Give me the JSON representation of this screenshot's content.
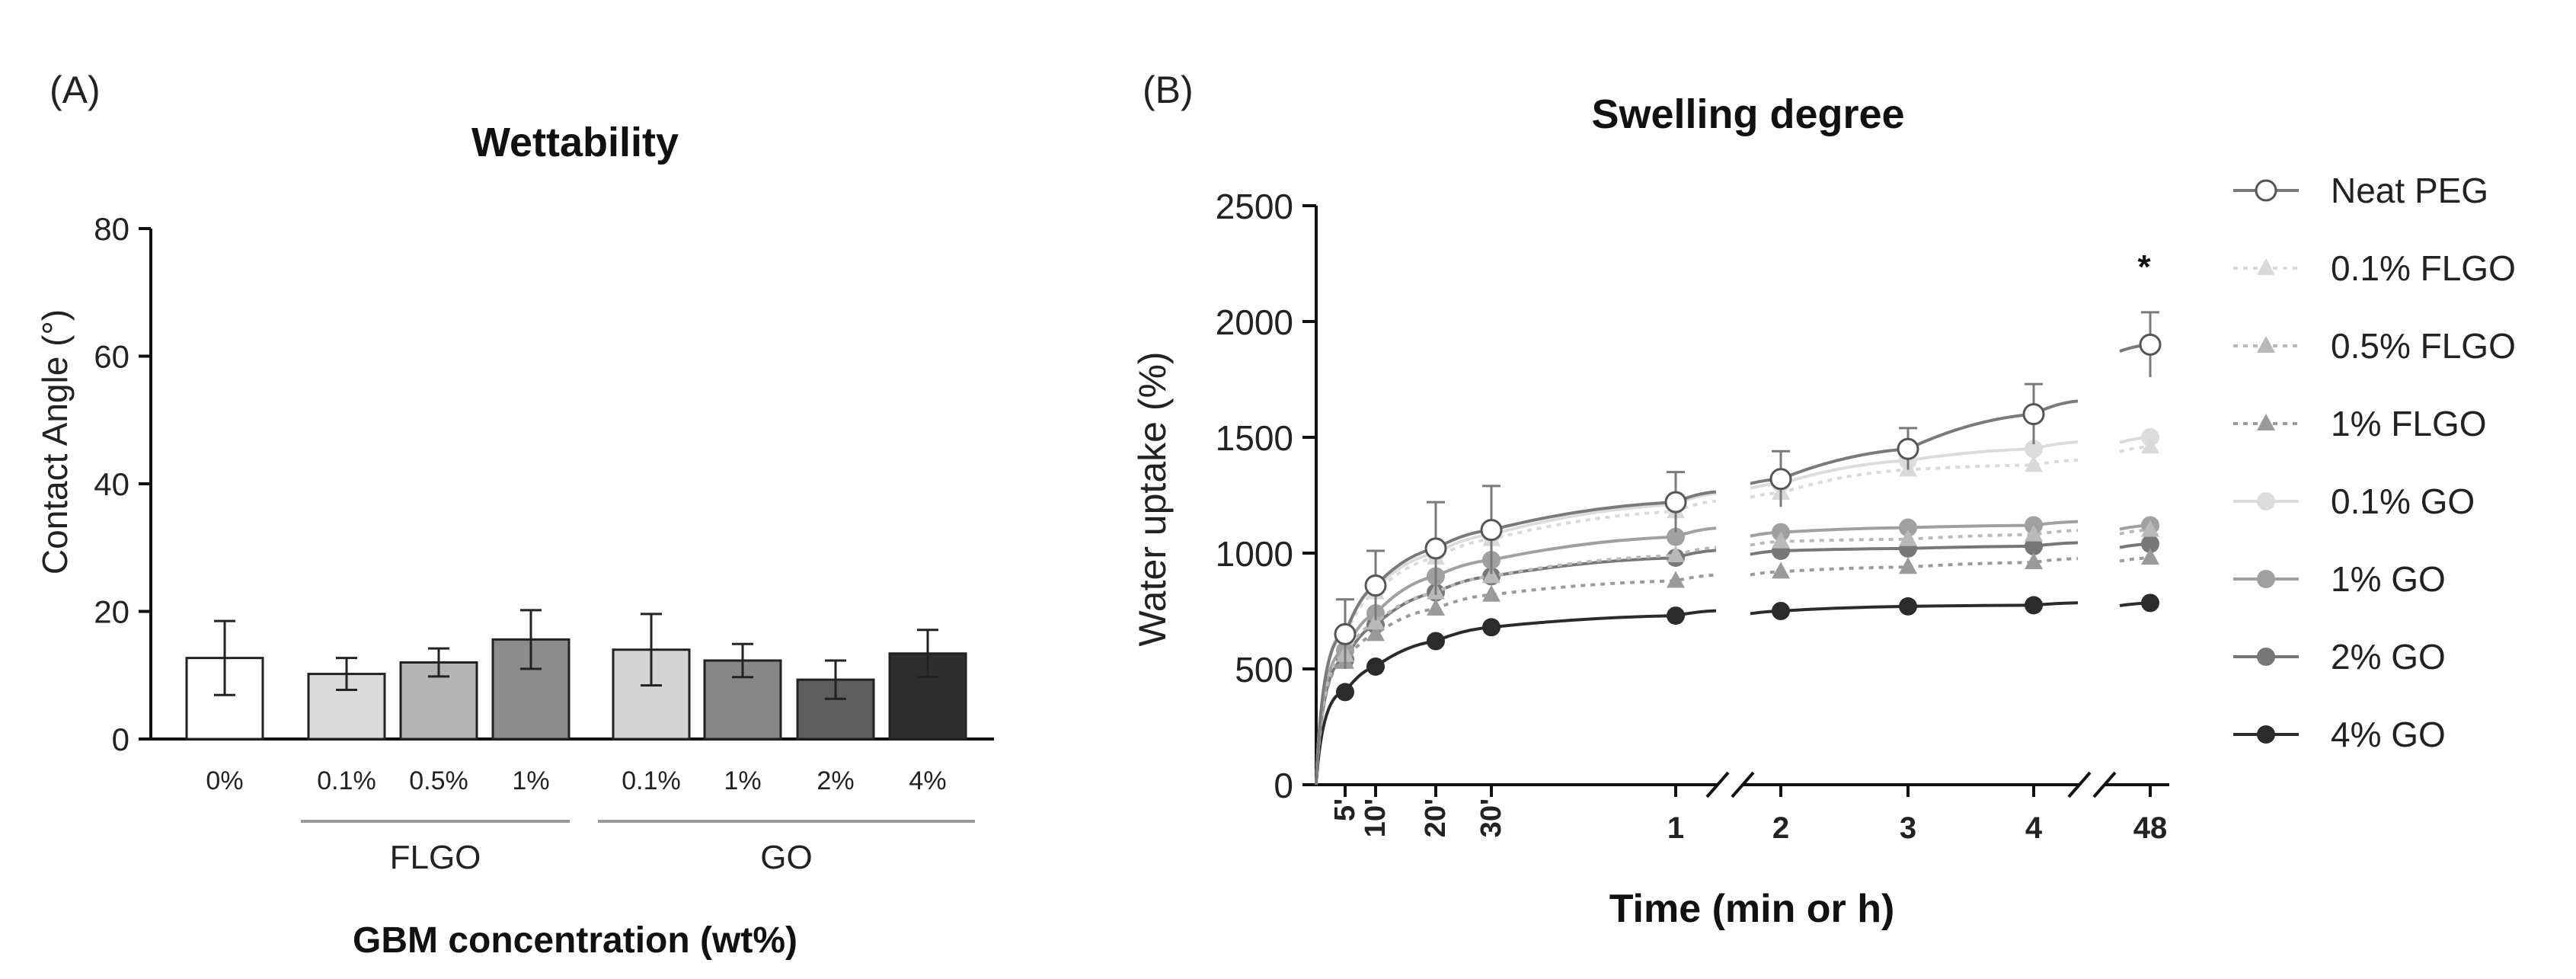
{
  "chart_data": [
    {
      "panel_label": "(A)",
      "type": "bar",
      "title": "Wettability",
      "ylabel": "Contact Angle (°)",
      "xlabel": "GBM concentration (wt%)",
      "ylim": [
        0,
        80
      ],
      "yticks": [
        0,
        20,
        40,
        60,
        80
      ],
      "categories": [
        "0%",
        "0.1%",
        "0.5%",
        "1%",
        "0.1%",
        "1%",
        "2%",
        "4%"
      ],
      "groups": [
        {
          "label": "FLGO",
          "members": [
            1,
            2,
            3
          ]
        },
        {
          "label": "GO",
          "members": [
            4,
            5,
            6,
            7
          ]
        }
      ],
      "values": [
        12.7,
        10.2,
        12.0,
        15.6,
        14.0,
        12.3,
        9.3,
        13.4
      ],
      "errors": [
        5.8,
        2.5,
        2.2,
        4.6,
        5.6,
        2.6,
        3.0,
        3.7
      ],
      "colors": [
        "#ffffff",
        "#dadada",
        "#b4b4b4",
        "#8c8c8c",
        "#d4d4d4",
        "#878787",
        "#5e5e5e",
        "#2e2e2e"
      ]
    },
    {
      "panel_label": "(B)",
      "type": "line",
      "title": "Swelling degree",
      "ylabel": "Water uptake (%)",
      "xlabel": "Time (min or h)",
      "ylim": [
        0,
        2500
      ],
      "yticks": [
        0,
        500,
        1000,
        1500,
        2000,
        2500
      ],
      "xticks": [
        "5'",
        "10'",
        "20'",
        "30'",
        "1",
        "2",
        "3",
        "4",
        "48"
      ],
      "annotation": "*",
      "series": [
        {
          "name": "Neat PEG",
          "marker": "circle-open",
          "dash": "solid",
          "color": "#7a7a7a",
          "values": [
            650,
            860,
            1020,
            1100,
            1220,
            1320,
            1450,
            1600,
            1900
          ],
          "errors": [
            150,
            150,
            200,
            190,
            130,
            120,
            90,
            130,
            140
          ]
        },
        {
          "name": "0.1% FLGO",
          "marker": "triangle",
          "dash": "dotted",
          "color": "#d9d9d9",
          "values": [
            640,
            830,
            980,
            1060,
            1180,
            1260,
            1360,
            1380,
            1460
          ],
          "errors": [
            0,
            0,
            0,
            0,
            0,
            0,
            0,
            0,
            0
          ]
        },
        {
          "name": "0.5% FLGO",
          "marker": "triangle",
          "dash": "dotted",
          "color": "#b9b9b9",
          "values": [
            560,
            700,
            830,
            900,
            990,
            1050,
            1060,
            1080,
            1100
          ],
          "errors": [
            0,
            0,
            0,
            0,
            0,
            0,
            0,
            0,
            0
          ]
        },
        {
          "name": "1% FLGO",
          "marker": "triangle",
          "dash": "dotted",
          "color": "#9a9a9a",
          "values": [
            530,
            650,
            760,
            820,
            880,
            920,
            940,
            960,
            980
          ],
          "errors": [
            0,
            0,
            0,
            0,
            0,
            0,
            0,
            0,
            0
          ]
        },
        {
          "name": "0.1% GO",
          "marker": "circle",
          "dash": "solid",
          "color": "#dcdcdc",
          "values": [
            660,
            850,
            1000,
            1080,
            1210,
            1300,
            1400,
            1450,
            1500
          ],
          "errors": [
            0,
            0,
            0,
            0,
            0,
            0,
            0,
            0,
            0
          ]
        },
        {
          "name": "1% GO",
          "marker": "circle",
          "dash": "solid",
          "color": "#a0a0a0",
          "values": [
            580,
            740,
            900,
            970,
            1070,
            1090,
            1110,
            1120,
            1120
          ],
          "errors": [
            0,
            0,
            0,
            0,
            0,
            0,
            0,
            0,
            0
          ]
        },
        {
          "name": "2% GO",
          "marker": "circle",
          "dash": "solid",
          "color": "#777777",
          "values": [
            540,
            690,
            830,
            900,
            980,
            1010,
            1020,
            1030,
            1040
          ],
          "errors": [
            0,
            0,
            0,
            0,
            0,
            0,
            0,
            0,
            0
          ]
        },
        {
          "name": "4% GO",
          "marker": "circle",
          "dash": "solid",
          "color": "#2b2b2b",
          "values": [
            400,
            510,
            620,
            680,
            730,
            750,
            770,
            775,
            785
          ],
          "errors": [
            0,
            0,
            0,
            0,
            0,
            0,
            0,
            0,
            0
          ]
        }
      ]
    }
  ]
}
